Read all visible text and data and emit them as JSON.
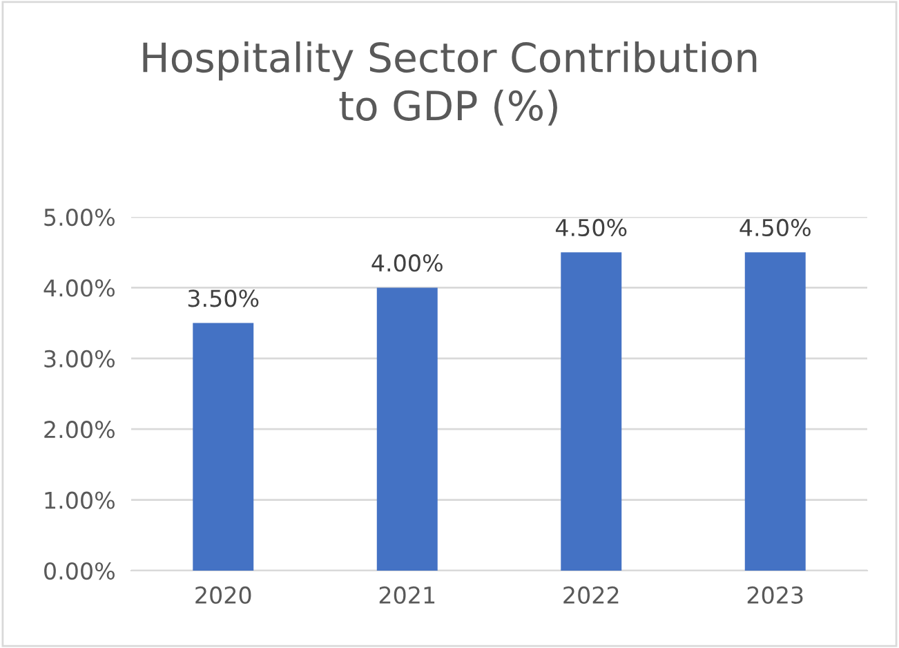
{
  "chart_data": {
    "type": "bar",
    "title": "Hospitality Sector Contribution\nto GDP (%)",
    "categories": [
      "2020",
      "2021",
      "2022",
      "2023"
    ],
    "values": [
      3.5,
      4.0,
      4.5,
      4.5
    ],
    "value_labels": [
      "3.50%",
      "4.00%",
      "4.50%",
      "4.50%"
    ],
    "color": "#4472c4",
    "ylim": [
      0,
      5
    ],
    "yticks": [
      {
        "value": 0,
        "label": "0.00%"
      },
      {
        "value": 1,
        "label": "1.00%"
      },
      {
        "value": 2,
        "label": "2.00%"
      },
      {
        "value": 3,
        "label": "3.00%"
      },
      {
        "value": 4,
        "label": "4.00%"
      },
      {
        "value": 5,
        "label": "5.00%"
      }
    ],
    "grid": "y",
    "legend": false
  }
}
